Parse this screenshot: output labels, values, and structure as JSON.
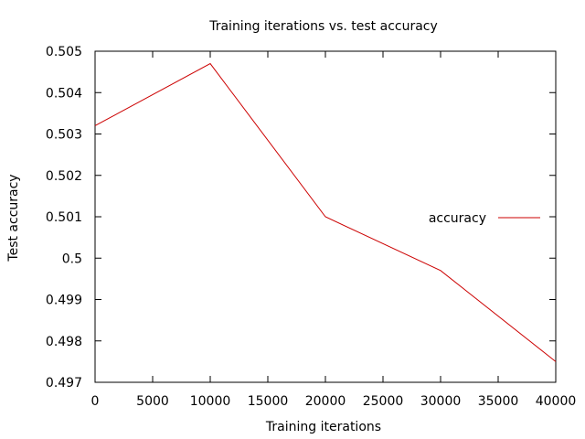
{
  "chart_data": {
    "type": "line",
    "title": "Training iterations vs. test accuracy",
    "xlabel": "Training iterations",
    "ylabel": "Test accuracy",
    "xlim": [
      0,
      40000
    ],
    "ylim": [
      0.497,
      0.505
    ],
    "x_ticks": [
      0,
      5000,
      10000,
      15000,
      20000,
      25000,
      30000,
      35000,
      40000
    ],
    "x_tick_labels": [
      "0",
      "5000",
      "10000",
      "15000",
      "20000",
      "25000",
      "30000",
      "35000",
      "40000"
    ],
    "y_ticks": [
      0.497,
      0.498,
      0.499,
      0.5,
      0.501,
      0.502,
      0.503,
      0.504,
      0.505
    ],
    "y_tick_labels": [
      "0.497",
      "0.498",
      "0.499",
      "0.5",
      "0.501",
      "0.502",
      "0.503",
      "0.504",
      "0.505"
    ],
    "grid": false,
    "legend_position": "right",
    "series": [
      {
        "name": "accuracy",
        "color": "#cc0000",
        "x": [
          0,
          10000,
          20000,
          30000,
          40000
        ],
        "y": [
          0.5032,
          0.5047,
          0.501,
          0.4997,
          0.4975
        ]
      }
    ]
  }
}
